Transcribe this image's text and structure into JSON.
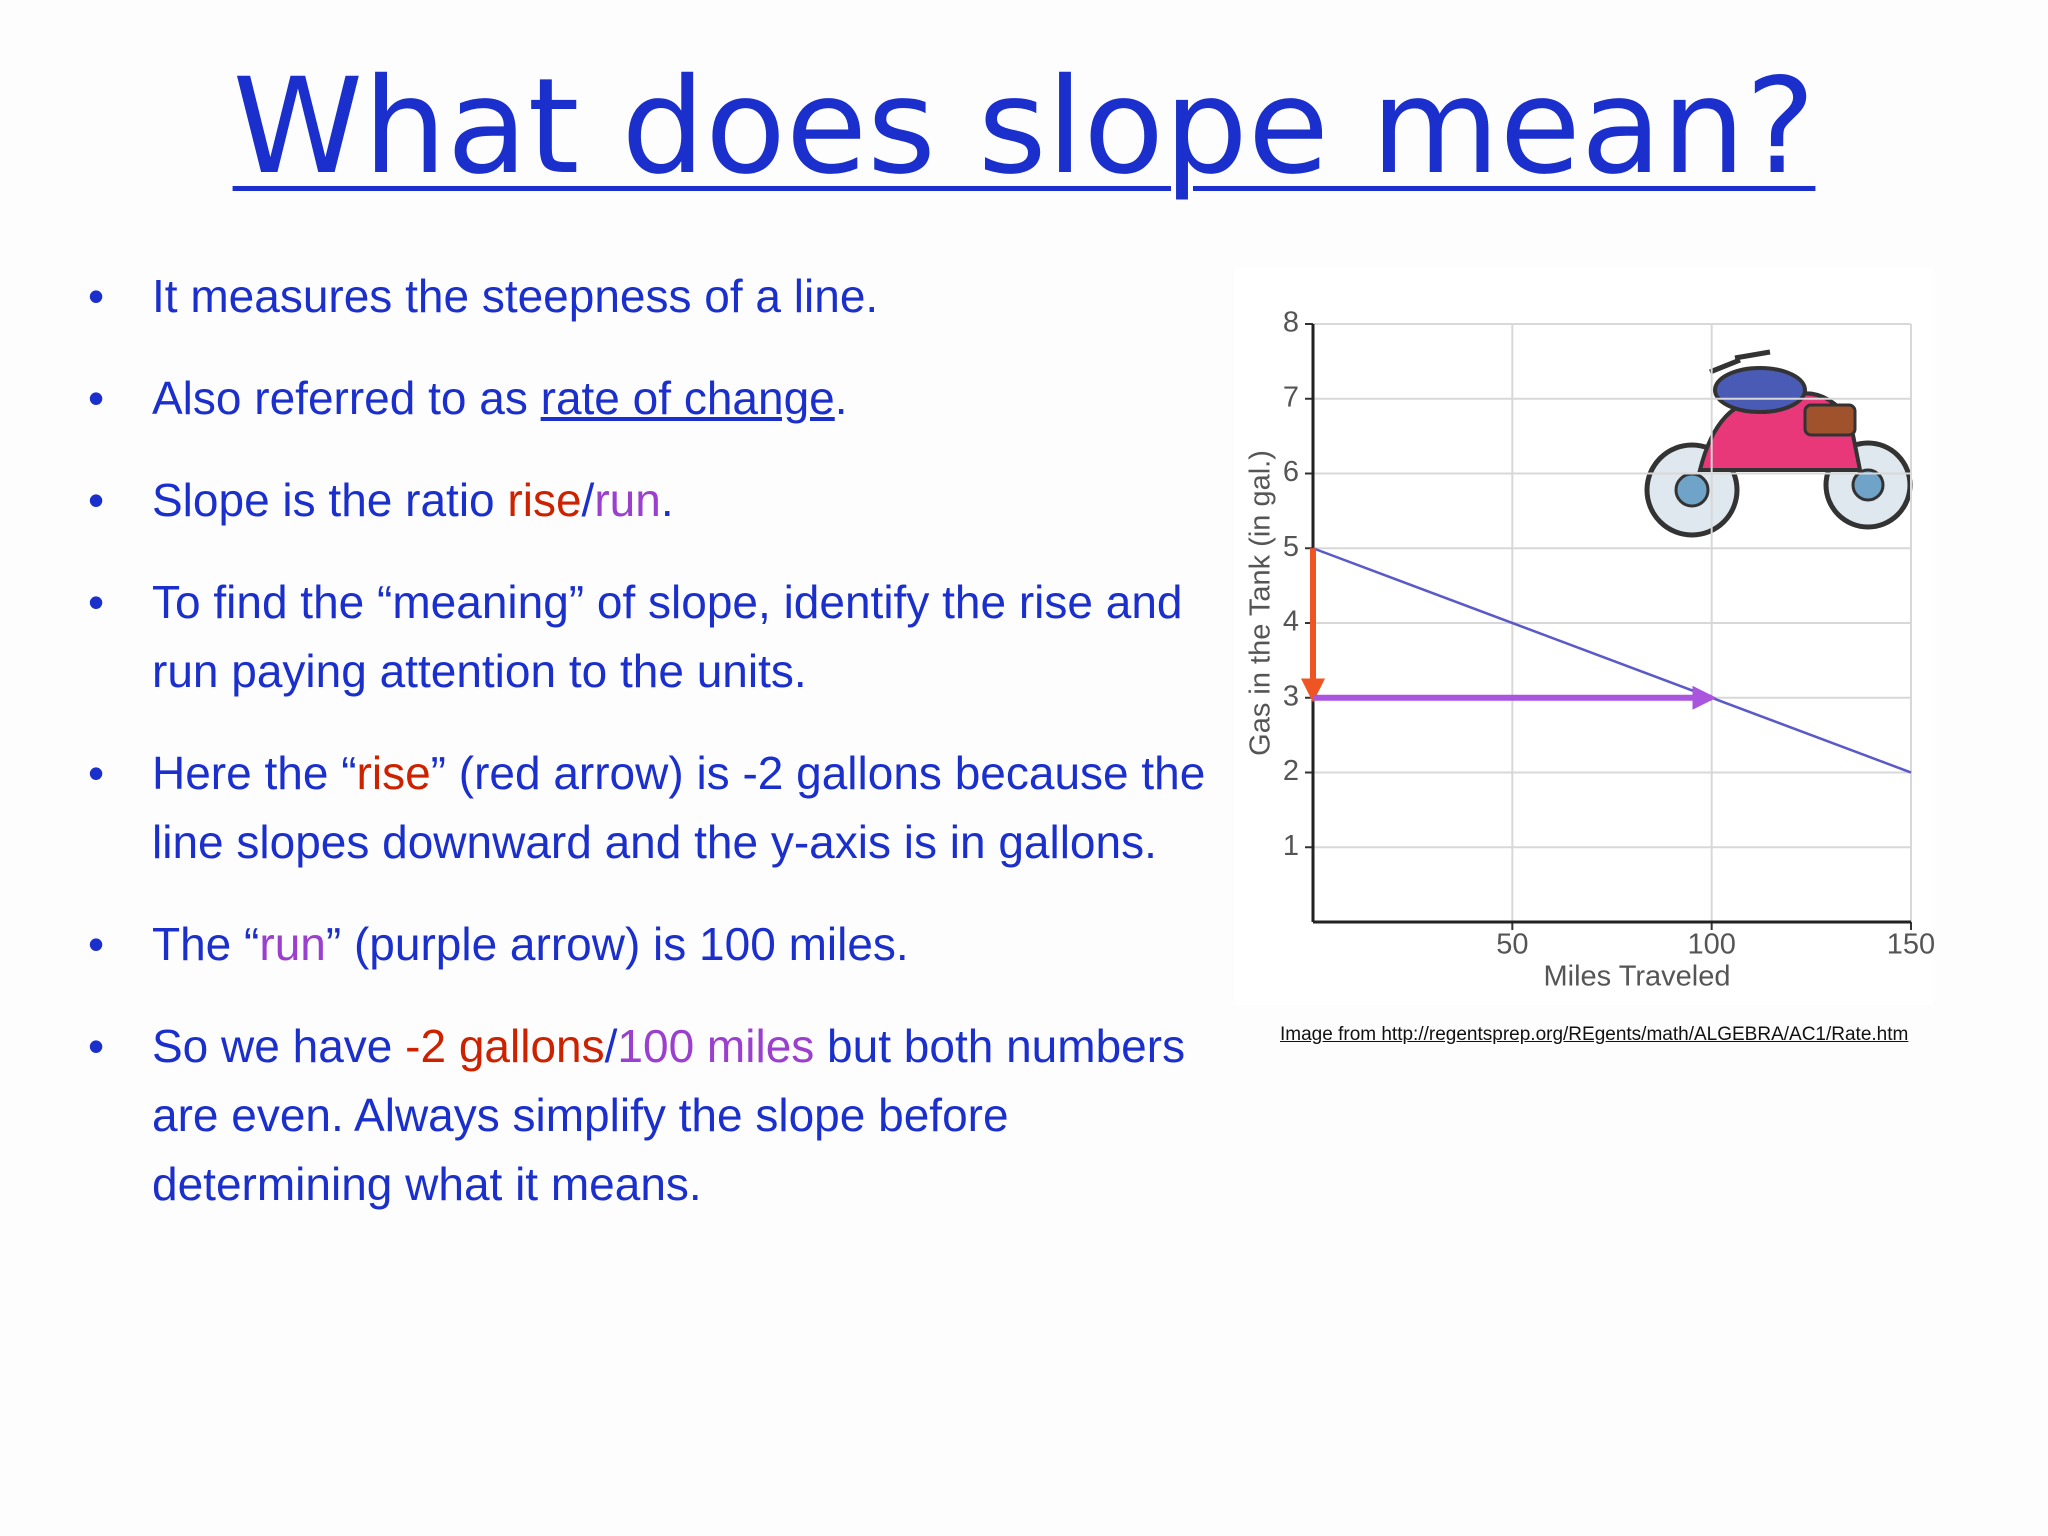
{
  "title": "What does slope mean?",
  "bullets": [
    [
      {
        "text": "It measures the steepness of a line."
      }
    ],
    [
      {
        "text": "Also referred to as "
      },
      {
        "text": "rate of change",
        "underline": true
      },
      {
        "text": "."
      }
    ],
    [
      {
        "text": "Slope is the ratio "
      },
      {
        "text": "rise",
        "color": "#cc2200"
      },
      {
        "text": "/"
      },
      {
        "text": "run",
        "color": "#9b3fcf"
      },
      {
        "text": "."
      }
    ],
    [
      {
        "text": "To find the “meaning” of slope, identify the rise and run paying attention to the units."
      }
    ],
    [
      {
        "text": "Here the “"
      },
      {
        "text": "rise",
        "color": "#cc2200"
      },
      {
        "text": "” (red arrow) is -2 gallons because the line slopes downward and the y-axis is in gallons."
      }
    ],
    [
      {
        "text": "The “"
      },
      {
        "text": "run",
        "color": "#9b3fcf"
      },
      {
        "text": "” (purple arrow) is 100 miles."
      }
    ],
    [
      {
        "text": "So we have "
      },
      {
        "text": "-2 gallons",
        "color": "#cc2200"
      },
      {
        "text": "/"
      },
      {
        "text": "100 miles",
        "color": "#9b3fcf"
      },
      {
        "text": " but both numbers are even.  Always simplify the slope before determining what it means."
      }
    ]
  ],
  "credit": "Image from http://regentsprep.org/REgents/math/ALGEBRA/AC1/Rate.htm",
  "chart_data": {
    "type": "line",
    "x_label": "Miles Traveled",
    "y_label": "Gas in the Tank  (in gal.)",
    "xlim": [
      0,
      150
    ],
    "xticks": [
      50,
      100,
      150
    ],
    "ylim": [
      0,
      8
    ],
    "yticks": [
      1,
      2,
      3,
      4,
      5,
      6,
      7,
      8
    ],
    "grid": true,
    "series": [
      {
        "color": "#5a5ac8",
        "x": [
          0,
          150
        ],
        "values": [
          5,
          2
        ]
      }
    ],
    "arrows": [
      {
        "color": "#ee5522",
        "x": [
          0,
          0
        ],
        "y": [
          5,
          3
        ]
      },
      {
        "color": "#aa55dd",
        "x": [
          0,
          100
        ],
        "y": [
          3,
          3
        ]
      }
    ]
  }
}
